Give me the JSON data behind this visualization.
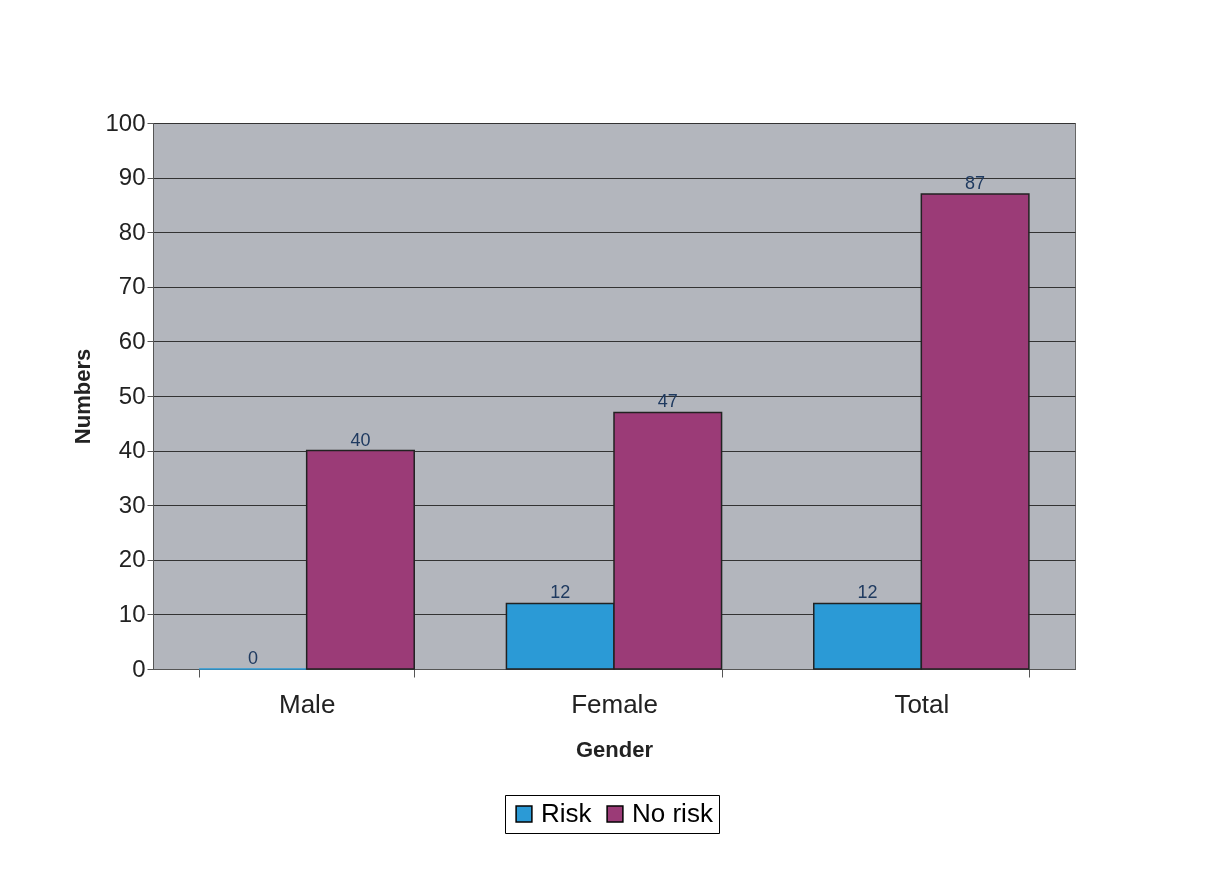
{
  "chart_data": {
    "type": "bar",
    "xlabel": "Gender",
    "ylabel": "Numbers",
    "categories": [
      "Male",
      "Female",
      "Total"
    ],
    "series": [
      {
        "name": "Risk",
        "color": "#2b9ad6",
        "values": [
          0,
          12,
          12
        ]
      },
      {
        "name": "No risk",
        "color": "#9b3b77",
        "values": [
          40,
          47,
          87
        ]
      }
    ],
    "ylim": [
      0,
      100
    ],
    "yticks": [
      0,
      10,
      20,
      30,
      40,
      50,
      60,
      70,
      80,
      90,
      100
    ],
    "grid": "y",
    "legend": "bottom",
    "data_labels": true
  }
}
